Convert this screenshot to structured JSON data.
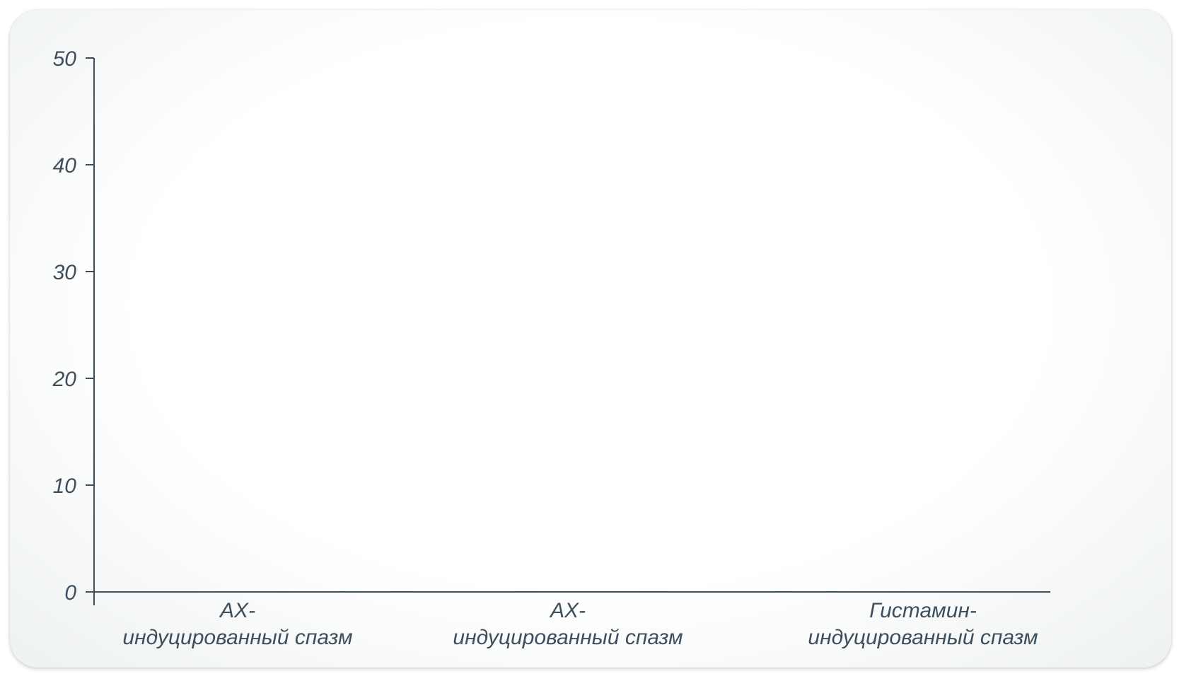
{
  "chart_data": {
    "type": "bar",
    "categories": [
      [
        "АХ-",
        "индуцированный спазм"
      ],
      [
        "АХ-",
        "индуцированный спазм"
      ],
      [
        "Гистамин-",
        "индуцированный спазм"
      ]
    ],
    "series": [],
    "ylim": [
      0,
      50
    ],
    "yticks": [
      0,
      10,
      20,
      30,
      40,
      50
    ],
    "grid": false,
    "colors": {
      "axis": "#3d4f5c",
      "text": "#3d4f5c"
    }
  }
}
